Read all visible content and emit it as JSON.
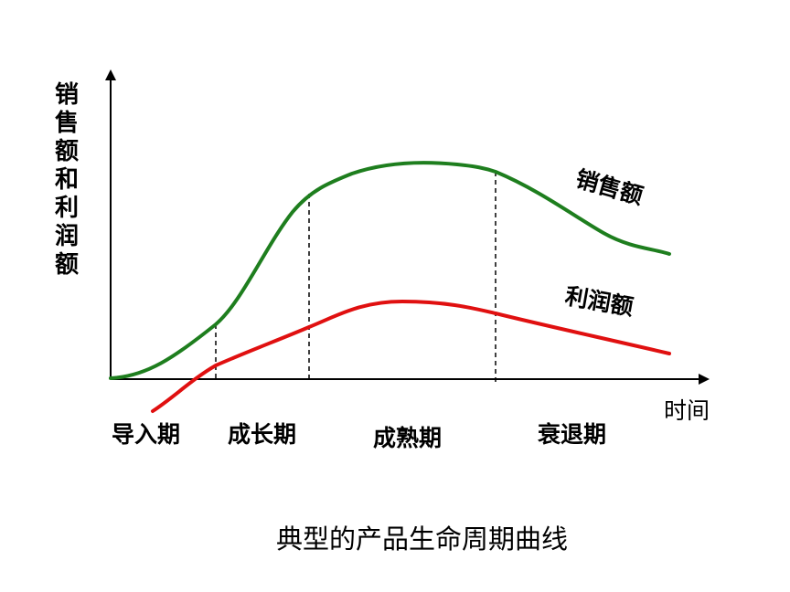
{
  "diagram": {
    "y_axis_label": "销售额和利润额",
    "x_axis_label": "时间",
    "caption": "典型的产品生命周期曲线",
    "phases": [
      "导入期",
      "成长期",
      "成熟期",
      "衰退期"
    ],
    "curves": {
      "sales": {
        "label": "销售额",
        "color": "#1e7e1e"
      },
      "profit": {
        "label": "利润额",
        "color": "#e01010"
      }
    }
  }
}
